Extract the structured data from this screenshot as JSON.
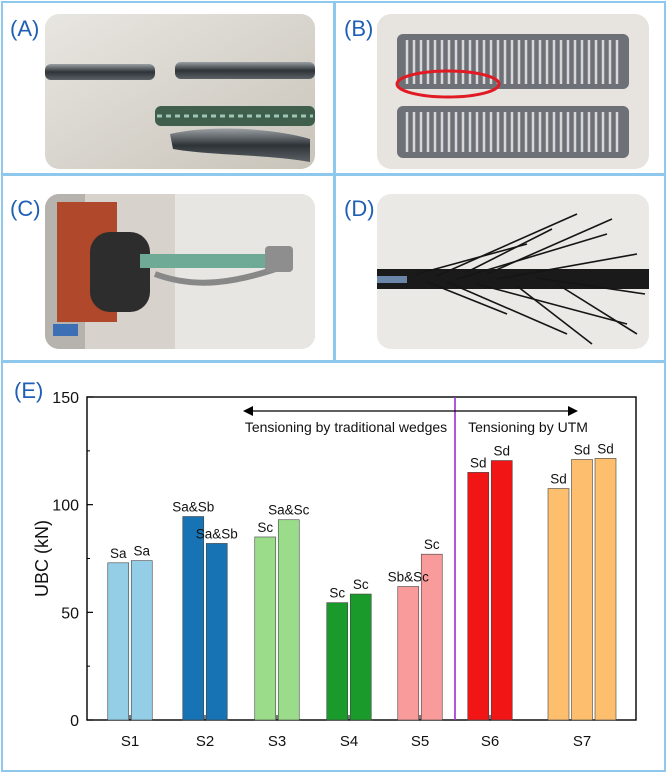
{
  "panels": {
    "a": {
      "label": "(A)"
    },
    "b": {
      "label": "(B)"
    },
    "c": {
      "label": "(C)"
    },
    "d": {
      "label": "(D)"
    },
    "e": {
      "label": "(E)"
    }
  },
  "colors": {
    "border": "#8ec8ec",
    "label": "#1f5fb5",
    "divider": "#9b30c9",
    "S1": "#93cde6",
    "S2": "#1873b5",
    "S3": "#9bdc8a",
    "S4": "#1a9a2a",
    "S5": "#fa9b9b",
    "S6": "#f21515",
    "S7": "#fdbf6e"
  },
  "chart_data": {
    "type": "bar",
    "ylabel": "UBC (kN)",
    "xlabel": "",
    "ylim": [
      0,
      150
    ],
    "yticks": [
      "0",
      "50",
      "100",
      "150"
    ],
    "categories": [
      "S1",
      "S2",
      "S3",
      "S4",
      "S5",
      "S6",
      "S7"
    ],
    "groups": [
      {
        "category": "S1",
        "values": [
          73,
          74
        ],
        "labels": [
          "Sa",
          "Sa"
        ]
      },
      {
        "category": "S2",
        "values": [
          94.5,
          82
        ],
        "labels": [
          "Sa&Sb",
          "Sa&Sb"
        ]
      },
      {
        "category": "S3",
        "values": [
          85,
          93
        ],
        "labels": [
          "Sc",
          "Sa&Sc"
        ]
      },
      {
        "category": "S4",
        "values": [
          54.5,
          58.5
        ],
        "labels": [
          "Sc",
          "Sc"
        ]
      },
      {
        "category": "S5",
        "values": [
          62,
          77
        ],
        "labels": [
          "Sb&Sc",
          "Sc"
        ]
      },
      {
        "category": "S6",
        "values": [
          115,
          120.5
        ],
        "labels": [
          "Sd",
          "Sd"
        ]
      },
      {
        "category": "S7",
        "values": [
          107.5,
          121,
          121.5
        ],
        "labels": [
          "Sd",
          "Sd",
          "Sd"
        ]
      }
    ],
    "annotations": {
      "left": "Tensioning by traditional wedges",
      "right": "Tensioning by UTM"
    },
    "grid": false
  }
}
